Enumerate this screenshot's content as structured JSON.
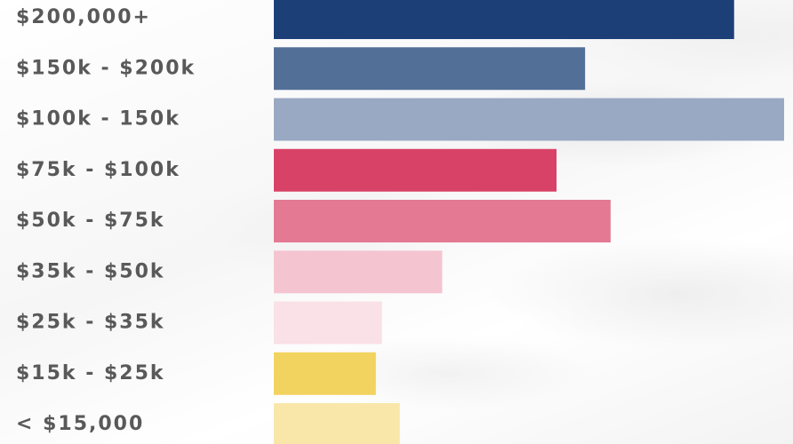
{
  "chart_data": {
    "type": "bar",
    "orientation": "horizontal",
    "title": "",
    "xlabel": "",
    "ylabel": "",
    "grid": false,
    "legend": "none",
    "xlim": [
      0,
      100
    ],
    "categories": [
      "$200,000+",
      "$150k - $200k",
      "$100k - 150k",
      "$75k - $100k",
      "$50k - $75k",
      "$35k - $50k",
      "$25k - $35k",
      "$15k - $25k",
      "< $15,000"
    ],
    "values": [
      90.2,
      61.0,
      100,
      55.4,
      66.0,
      33.0,
      21.2,
      20.0,
      24.7
    ],
    "colors": [
      "#1d3f78",
      "#526f97",
      "#99a9c3",
      "#d94267",
      "#e37993",
      "#f4c5d1",
      "#f9e1e7",
      "#f2d35f",
      "#f9e7aa"
    ]
  }
}
